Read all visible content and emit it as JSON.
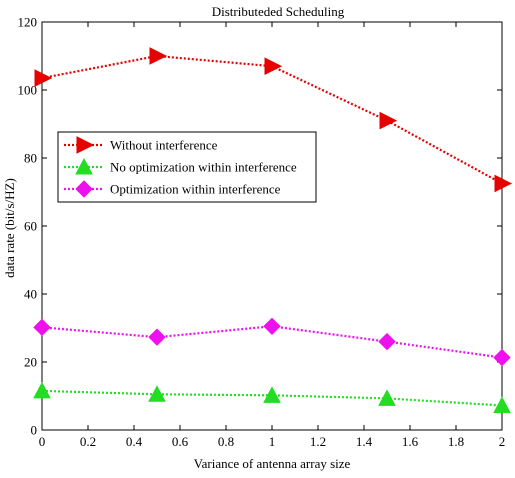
{
  "chart_data": {
    "type": "line",
    "title": "Distributeded Scheduling",
    "xlabel": "Variance of antenna array size",
    "ylabel": "data rate (bit/s/HZ)",
    "xlim": [
      0,
      2
    ],
    "ylim": [
      0,
      120
    ],
    "xticks": [
      "0",
      "0.2",
      "0.4",
      "0.6",
      "0.8",
      "1",
      "1.2",
      "1.4",
      "1.6",
      "1.8",
      "2"
    ],
    "yticks": [
      "0",
      "20",
      "40",
      "60",
      "80",
      "100",
      "120"
    ],
    "grid": false,
    "legend_position": "upper-left",
    "x": [
      0,
      0.5,
      1,
      1.5,
      2
    ],
    "series": [
      {
        "name": "Without interference",
        "values": [
          103.5,
          110,
          107,
          91,
          72.5
        ],
        "color": "#e60000",
        "marker": "triangle-right"
      },
      {
        "name": "No optimization within interference",
        "values": [
          11.5,
          10.5,
          10.2,
          9.3,
          7.2
        ],
        "color": "#22dd22",
        "marker": "triangle-up"
      },
      {
        "name": "Optimization within interference",
        "values": [
          30.2,
          27.3,
          30.5,
          26,
          21.3
        ],
        "color": "#ee11ee",
        "marker": "diamond"
      }
    ]
  }
}
